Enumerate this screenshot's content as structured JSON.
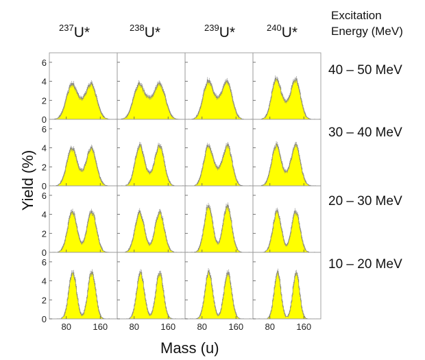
{
  "figure": {
    "column_header": {
      "title_line1": "Excitation",
      "title_line2": "Energy (MeV)"
    },
    "y_axis_label": "Yield (%)",
    "x_axis_label": "Mass (u)",
    "y_ticks": [
      "0",
      "2",
      "4",
      "6"
    ],
    "x_ticks": [
      "80",
      "160"
    ]
  },
  "chart_data": {
    "type": "histogram",
    "panel_grid": "4 rows x 4 columns",
    "fill_color": "#ffff00",
    "outline_color": "#777777",
    "error_bar_color": "#888888",
    "ylim": [
      0,
      7
    ],
    "xlim": [
      40,
      200
    ],
    "columns": [
      {
        "mass_number": "237",
        "label": "U*"
      },
      {
        "mass_number": "238",
        "label": "U*"
      },
      {
        "mass_number": "239",
        "label": "U*"
      },
      {
        "mass_number": "240",
        "label": "U*"
      }
    ],
    "rows": [
      {
        "energy_label": "40 – 50 MeV",
        "panels": [
          {
            "light_peak_mass": 93,
            "heavy_peak_mass": 139,
            "peak_yield": 3.6,
            "valley_yield": 2.2,
            "width": 13
          },
          {
            "light_peak_mass": 91,
            "heavy_peak_mass": 141,
            "peak_yield": 3.6,
            "valley_yield": 2.3,
            "width": 13
          },
          {
            "light_peak_mass": 94,
            "heavy_peak_mass": 139,
            "peak_yield": 3.9,
            "valley_yield": 2.3,
            "width": 12
          },
          {
            "light_peak_mass": 95,
            "heavy_peak_mass": 141,
            "peak_yield": 4.2,
            "valley_yield": 1.9,
            "width": 11
          }
        ]
      },
      {
        "energy_label": "30 – 40 MeV",
        "panels": [
          {
            "light_peak_mass": 93,
            "heavy_peak_mass": 139,
            "peak_yield": 3.9,
            "valley_yield": 1.6,
            "width": 12
          },
          {
            "light_peak_mass": 93,
            "heavy_peak_mass": 140,
            "peak_yield": 4.2,
            "valley_yield": 1.4,
            "width": 11
          },
          {
            "light_peak_mass": 95,
            "heavy_peak_mass": 140,
            "peak_yield": 4.2,
            "valley_yield": 1.9,
            "width": 11
          },
          {
            "light_peak_mass": 95,
            "heavy_peak_mass": 141,
            "peak_yield": 4.2,
            "valley_yield": 1.5,
            "width": 11
          }
        ]
      },
      {
        "energy_label": "20 – 30 MeV",
        "panels": [
          {
            "light_peak_mass": 94,
            "heavy_peak_mass": 140,
            "peak_yield": 4.3,
            "valley_yield": 1.0,
            "width": 11
          },
          {
            "light_peak_mass": 93,
            "heavy_peak_mass": 140,
            "peak_yield": 4.2,
            "valley_yield": 0.8,
            "width": 11
          },
          {
            "light_peak_mass": 95,
            "heavy_peak_mass": 140,
            "peak_yield": 4.9,
            "valley_yield": 1.0,
            "width": 10
          },
          {
            "light_peak_mass": 97,
            "heavy_peak_mass": 141,
            "peak_yield": 4.3,
            "valley_yield": 0.7,
            "width": 10
          }
        ]
      },
      {
        "energy_label": "10 – 20 MeV",
        "panels": [
          {
            "light_peak_mass": 95,
            "heavy_peak_mass": 140,
            "peak_yield": 5.0,
            "valley_yield": 0.3,
            "width": 9
          },
          {
            "light_peak_mass": 95,
            "heavy_peak_mass": 140,
            "peak_yield": 4.9,
            "valley_yield": 0.3,
            "width": 9
          },
          {
            "light_peak_mass": 96,
            "heavy_peak_mass": 141,
            "peak_yield": 4.9,
            "valley_yield": 0.3,
            "width": 9
          },
          {
            "light_peak_mass": 98,
            "heavy_peak_mass": 142,
            "peak_yield": 4.9,
            "valley_yield": 0.2,
            "width": 8
          }
        ]
      }
    ]
  }
}
